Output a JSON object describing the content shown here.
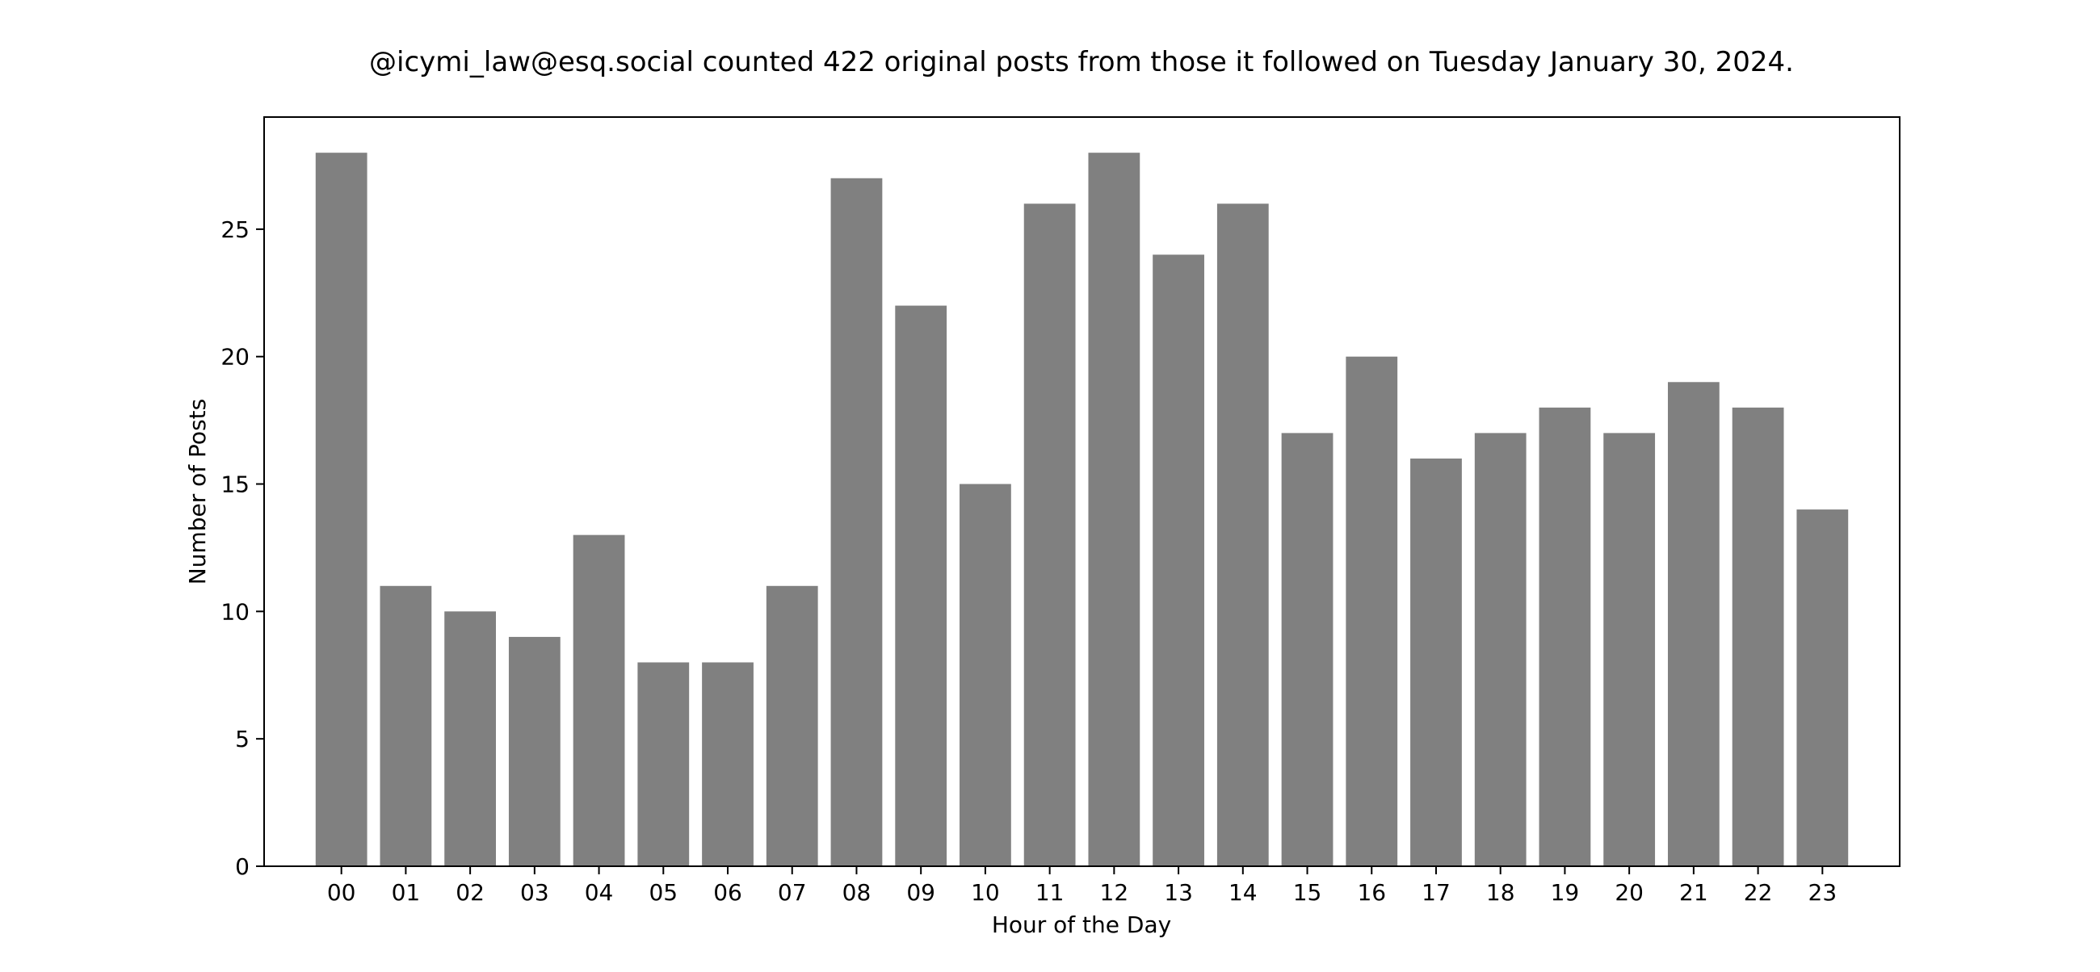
{
  "chart_data": {
    "type": "bar",
    "title": "@icymi_law@esq.social counted 422 original posts from those it followed on Tuesday January 30, 2024.",
    "xlabel": "Hour of the Day",
    "ylabel": "Number of Posts",
    "categories": [
      "00",
      "01",
      "02",
      "03",
      "04",
      "05",
      "06",
      "07",
      "08",
      "09",
      "10",
      "11",
      "12",
      "13",
      "14",
      "15",
      "16",
      "17",
      "18",
      "19",
      "20",
      "21",
      "22",
      "23"
    ],
    "values": [
      28,
      11,
      10,
      9,
      13,
      8,
      8,
      11,
      27,
      22,
      15,
      26,
      28,
      24,
      26,
      17,
      20,
      16,
      17,
      18,
      17,
      19,
      18,
      14
    ],
    "ylim": [
      0,
      29.4
    ],
    "yticks": [
      0,
      5,
      10,
      15,
      20,
      25
    ],
    "grid": false,
    "bar_color": "#808080",
    "axis_color": "#000000"
  }
}
